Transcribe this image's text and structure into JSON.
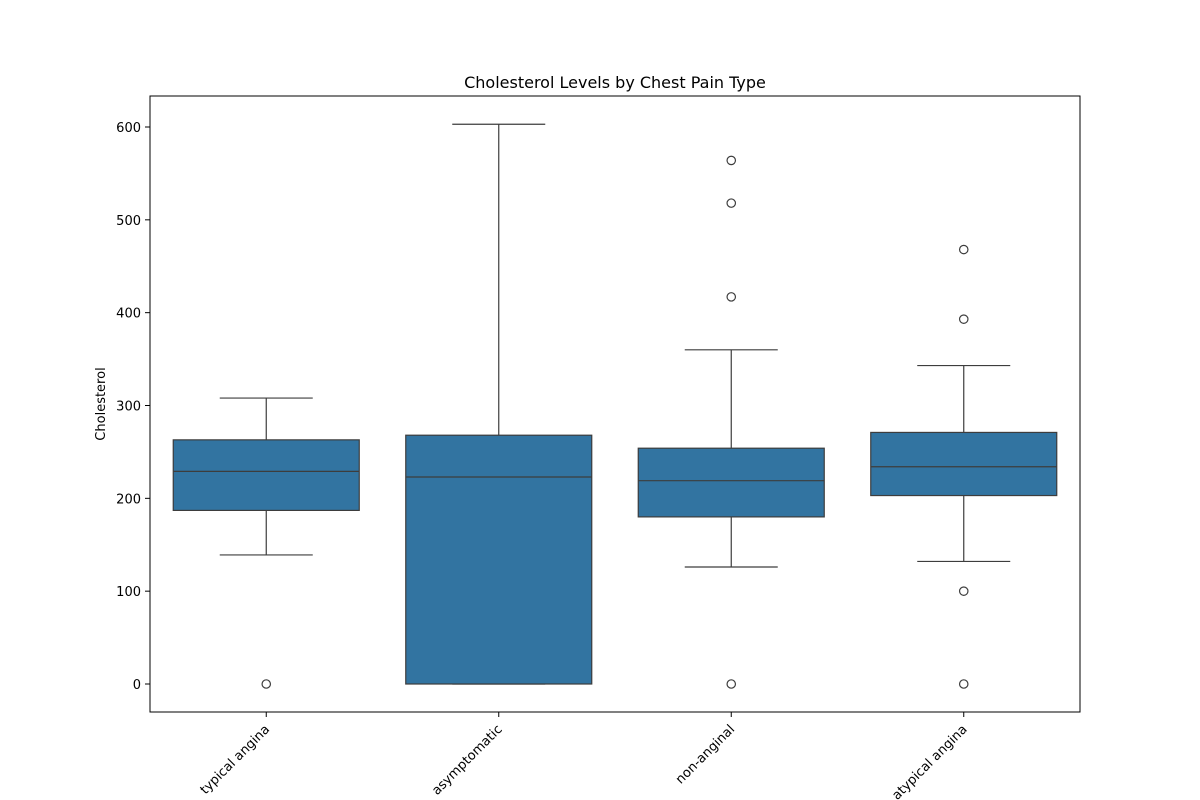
{
  "chart_data": {
    "type": "box",
    "title": "Cholesterol Levels by Chest Pain Type",
    "xlabel": "",
    "ylabel": "Cholesterol",
    "ylim": [
      -30,
      632
    ],
    "yticks": [
      0,
      100,
      200,
      300,
      400,
      500,
      600
    ],
    "grid": false,
    "box_color": "#3274a1",
    "line_color": "#3d3d3d",
    "categories": [
      "typical angina",
      "asymptomatic",
      "non-anginal",
      "atypical angina"
    ],
    "boxes": [
      {
        "category": "typical angina",
        "whisker_low": 139,
        "q1": 187,
        "median": 229,
        "q3": 263,
        "whisker_high": 308,
        "outliers": [
          0
        ]
      },
      {
        "category": "asymptomatic",
        "whisker_low": 0,
        "q1": 0,
        "median": 223,
        "q3": 268,
        "whisker_high": 603,
        "outliers": []
      },
      {
        "category": "non-anginal",
        "whisker_low": 126,
        "q1": 180,
        "median": 219,
        "q3": 254,
        "whisker_high": 360,
        "outliers": [
          0,
          417,
          518,
          564
        ]
      },
      {
        "category": "atypical angina",
        "whisker_low": 132,
        "q1": 203,
        "median": 234,
        "q3": 271,
        "whisker_high": 343,
        "outliers": [
          0,
          100,
          393,
          468
        ]
      }
    ]
  }
}
